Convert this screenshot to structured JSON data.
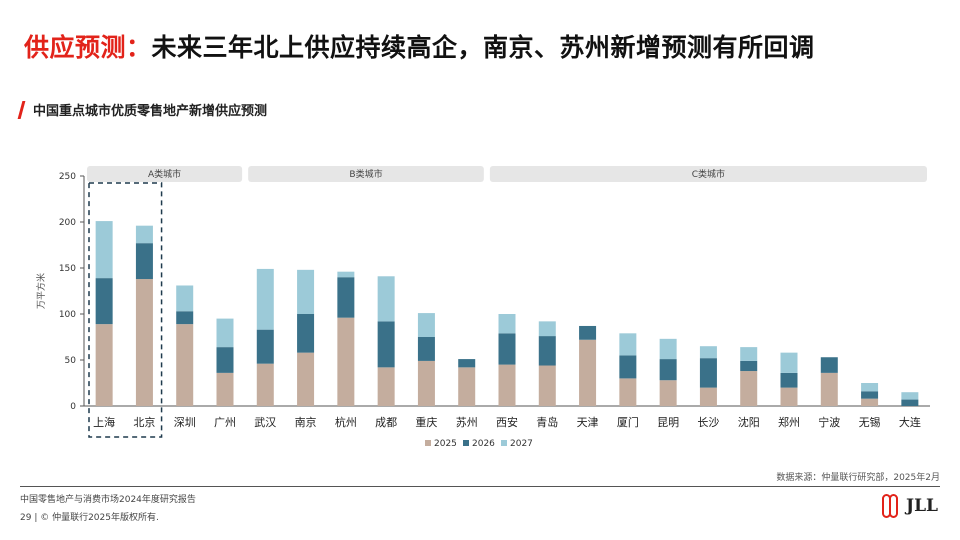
{
  "header": {
    "title_prefix": "供应预测：",
    "title_main": "未来三年北上供应持续高企，南京、苏州新增预测有所回调",
    "subtitle": "中国重点城市优质零售地产新增供应预测"
  },
  "source": "数据来源：仲量联行研究部，2025年2月",
  "footer": {
    "report": "中国零售地产与消费市场2024年度研究报告",
    "copyright": "29 | © 仲量联行2025年版权所有."
  },
  "logo": {
    "text": "JLL"
  },
  "colors": {
    "s2025": "#c4ad9e",
    "s2026": "#3a7189",
    "s2027": "#9ccad8",
    "accent": "#e2231a"
  },
  "chart_data": {
    "type": "bar",
    "stacked": true,
    "ylabel": "万平方米",
    "ylim": [
      0,
      250
    ],
    "yticks": [
      0,
      50,
      100,
      150,
      200,
      250
    ],
    "categories": [
      "上海",
      "北京",
      "深圳",
      "广州",
      "武汉",
      "南京",
      "杭州",
      "成都",
      "重庆",
      "苏州",
      "西安",
      "青岛",
      "天津",
      "厦门",
      "昆明",
      "长沙",
      "沈阳",
      "郑州",
      "宁波",
      "无锡",
      "大连"
    ],
    "series": [
      {
        "name": "2025",
        "values": [
          89,
          138,
          89,
          36,
          46,
          58,
          96,
          42,
          49,
          42,
          45,
          44,
          72,
          30,
          28,
          20,
          38,
          20,
          36,
          8,
          0
        ]
      },
      {
        "name": "2026",
        "values": [
          50,
          39,
          14,
          28,
          37,
          42,
          44,
          50,
          26,
          9,
          34,
          32,
          15,
          25,
          23,
          32,
          11,
          16,
          17,
          8,
          7
        ]
      },
      {
        "name": "2027",
        "values": [
          62,
          19,
          28,
          31,
          66,
          48,
          6,
          49,
          26,
          0,
          21,
          16,
          0,
          24,
          22,
          13,
          15,
          22,
          0,
          9,
          8
        ]
      }
    ],
    "groups": [
      {
        "label": "A类城市",
        "start": 0,
        "end": 3
      },
      {
        "label": "B类城市",
        "start": 4,
        "end": 9
      },
      {
        "label": "C类城市",
        "start": 10,
        "end": 20
      }
    ],
    "highlight": {
      "start": 0,
      "end": 1
    },
    "legend_position": "bottom-center",
    "grid": false
  }
}
